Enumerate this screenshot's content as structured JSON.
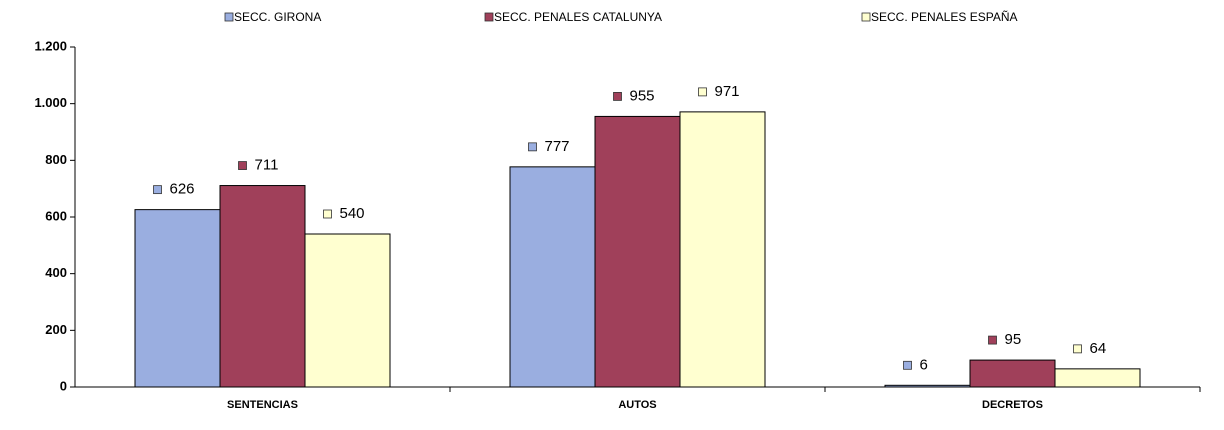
{
  "chart_data": {
    "type": "bar",
    "categories": [
      "SENTENCIAS",
      "AUTOS",
      "DECRETOS"
    ],
    "series": [
      {
        "name": "SECC. GIRONA",
        "color": "#9aaee0",
        "values": [
          626,
          777,
          6
        ]
      },
      {
        "name": "SECC. PENALES CATALUNYA",
        "color": "#a0405a",
        "values": [
          711,
          955,
          95
        ]
      },
      {
        "name": "SECC. PENALES ESPAÑA",
        "color": "#ffffd0",
        "values": [
          540,
          971,
          64
        ]
      }
    ],
    "ylim": [
      0,
      1200
    ],
    "yticks": [
      0,
      200,
      400,
      600,
      800,
      {
        "value": 1000,
        "label": "1.000"
      },
      {
        "value": 1200,
        "label": "1.200"
      }
    ],
    "legend": "top",
    "grid": false
  }
}
